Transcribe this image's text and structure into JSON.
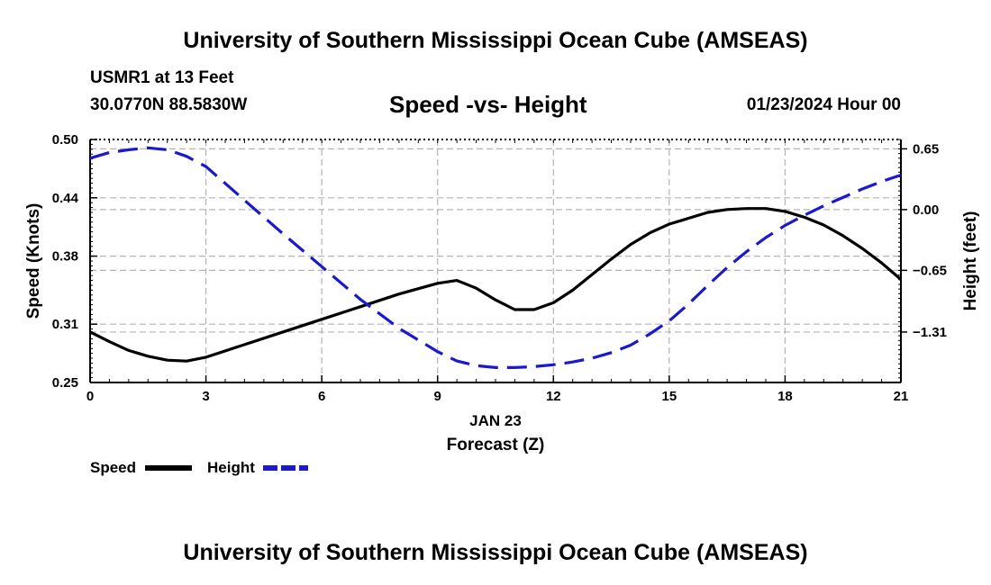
{
  "header": {
    "title": "University of Southern Mississippi Ocean Cube (AMSEAS)",
    "station": "USMR1 at 13 Feet",
    "coords": "30.0770N  88.5830W",
    "date": "01/23/2024 Hour 00"
  },
  "footer": {
    "title": "University of Southern Mississippi Ocean Cube (AMSEAS)"
  },
  "legend": {
    "speed_label": "Speed",
    "height_label": "Height"
  },
  "colors": {
    "speed": "#000000",
    "height": "#1a1acc",
    "grid": "#b4b4b4"
  },
  "chart_data": {
    "type": "line",
    "title": "Speed -vs- Height",
    "xlabel": "Forecast (Z)",
    "xsublabel": "JAN 23",
    "ylabel": "Speed (Knots)",
    "y2label": "Height (feet)",
    "xlim": [
      0,
      21
    ],
    "ylim": [
      0.25,
      0.5
    ],
    "y2lim": [
      -1.85,
      0.75
    ],
    "x_ticks": [
      0,
      3,
      6,
      9,
      12,
      15,
      18,
      21
    ],
    "y_ticks": [
      0.25,
      0.31,
      0.38,
      0.44,
      0.5
    ],
    "y_tick_labels": [
      "0.25",
      "0.31",
      "0.38",
      "0.44",
      "0.50"
    ],
    "y2_ticks": [
      -1.31,
      -0.65,
      0.0,
      0.65
    ],
    "y2_tick_labels": [
      "−1.31",
      "−0.65",
      "0.00",
      "0.65"
    ],
    "series": [
      {
        "name": "Speed",
        "axis": "left",
        "style": "solid",
        "x": [
          0,
          0.5,
          1,
          1.5,
          2,
          2.5,
          3,
          4,
          5,
          6,
          7,
          8,
          9,
          9.5,
          10,
          10.5,
          11,
          11.5,
          12,
          12.5,
          13,
          13.5,
          14,
          14.5,
          15,
          15.5,
          16,
          16.5,
          17,
          17.5,
          18,
          18.5,
          19,
          19.5,
          20,
          20.5,
          21
        ],
        "values": [
          0.302,
          0.292,
          0.283,
          0.277,
          0.273,
          0.272,
          0.276,
          0.289,
          0.302,
          0.315,
          0.328,
          0.341,
          0.352,
          0.355,
          0.347,
          0.335,
          0.325,
          0.325,
          0.332,
          0.345,
          0.361,
          0.377,
          0.392,
          0.404,
          0.413,
          0.419,
          0.425,
          0.428,
          0.429,
          0.429,
          0.426,
          0.42,
          0.412,
          0.401,
          0.388,
          0.373,
          0.356
        ]
      },
      {
        "name": "Height",
        "axis": "right",
        "style": "dashed",
        "x": [
          0,
          0.5,
          1,
          1.5,
          2,
          2.5,
          3,
          4,
          5,
          6,
          7,
          8,
          9,
          9.5,
          10,
          10.5,
          11,
          11.5,
          12,
          12.5,
          13,
          13.5,
          14,
          14.5,
          15,
          15.5,
          16,
          16.5,
          17,
          17.5,
          18,
          18.5,
          19,
          19.5,
          20,
          20.5,
          21
        ],
        "values": [
          0.55,
          0.61,
          0.64,
          0.66,
          0.64,
          0.57,
          0.46,
          0.1,
          -0.26,
          -0.61,
          -0.96,
          -1.27,
          -1.52,
          -1.62,
          -1.67,
          -1.69,
          -1.69,
          -1.68,
          -1.66,
          -1.63,
          -1.59,
          -1.53,
          -1.45,
          -1.33,
          -1.19,
          -1.01,
          -0.81,
          -0.62,
          -0.45,
          -0.3,
          -0.17,
          -0.06,
          0.04,
          0.13,
          0.22,
          0.3,
          0.37
        ]
      }
    ]
  }
}
